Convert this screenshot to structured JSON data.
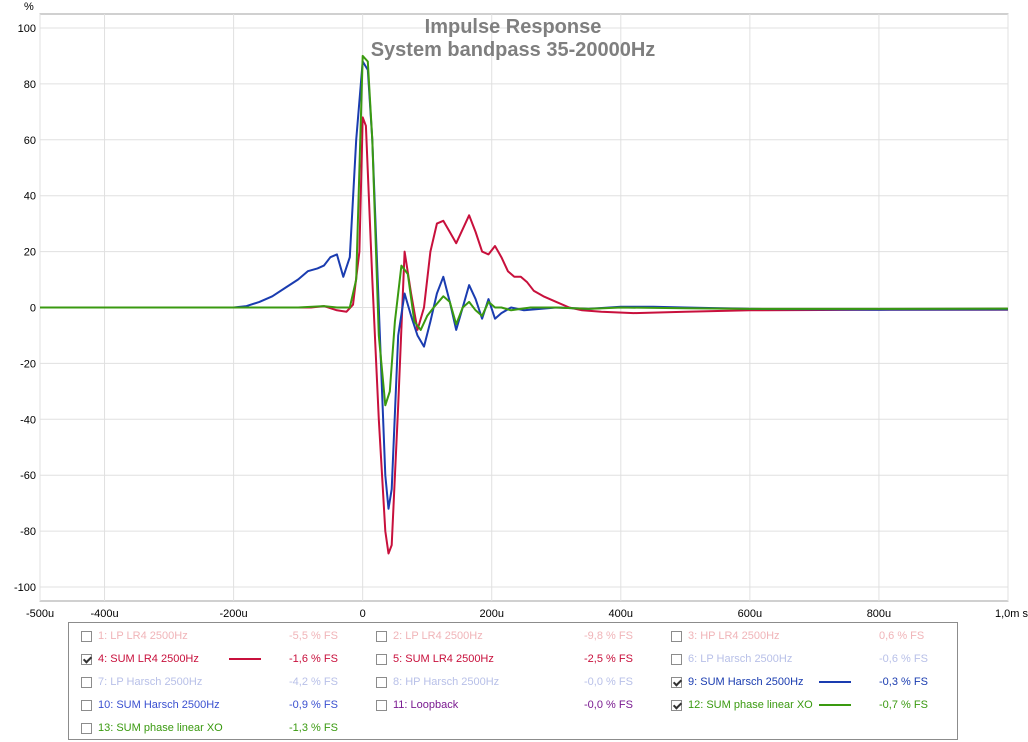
{
  "chart_data": {
    "type": "line",
    "title": "Impulse Response",
    "subtitle": "System bandpass 35-20000Hz",
    "ylabel_unit": "%",
    "xlim": [
      -500,
      1000
    ],
    "ylim": [
      -105,
      105
    ],
    "x_ticks": [
      {
        "value": -500,
        "label": "-500u"
      },
      {
        "value": -400,
        "label": "-400u"
      },
      {
        "value": -200,
        "label": "-200u"
      },
      {
        "value": 0,
        "label": "0"
      },
      {
        "value": 200,
        "label": "200u"
      },
      {
        "value": 400,
        "label": "400u"
      },
      {
        "value": 600,
        "label": "600u"
      },
      {
        "value": 800,
        "label": "800u"
      },
      {
        "value": 1000,
        "label": "1,0m s"
      }
    ],
    "y_ticks": [
      {
        "value": 100,
        "label": "100"
      },
      {
        "value": 80,
        "label": "80"
      },
      {
        "value": 60,
        "label": "60"
      },
      {
        "value": 40,
        "label": "40"
      },
      {
        "value": 20,
        "label": "20"
      },
      {
        "value": 0,
        "label": "0"
      },
      {
        "value": -20,
        "label": "-20"
      },
      {
        "value": -40,
        "label": "-40"
      },
      {
        "value": -60,
        "label": "-60"
      },
      {
        "value": -80,
        "label": "-80"
      },
      {
        "value": -100,
        "label": "-100"
      }
    ],
    "grid": true,
    "series": [
      {
        "name": "4: SUM LR4 2500Hz",
        "color": "#c8103c",
        "points": [
          [
            -500,
            0
          ],
          [
            -150,
            0
          ],
          [
            -80,
            0
          ],
          [
            -60,
            0.5
          ],
          [
            -40,
            -1
          ],
          [
            -25,
            -1.5
          ],
          [
            -15,
            1
          ],
          [
            -5,
            20
          ],
          [
            0,
            68
          ],
          [
            5,
            65
          ],
          [
            15,
            10
          ],
          [
            25,
            -40
          ],
          [
            35,
            -80
          ],
          [
            40,
            -88
          ],
          [
            45,
            -85
          ],
          [
            55,
            -35
          ],
          [
            65,
            20
          ],
          [
            75,
            5
          ],
          [
            85,
            -8
          ],
          [
            95,
            0
          ],
          [
            105,
            20
          ],
          [
            115,
            30
          ],
          [
            125,
            31
          ],
          [
            135,
            27
          ],
          [
            145,
            23
          ],
          [
            155,
            28
          ],
          [
            165,
            33
          ],
          [
            175,
            27
          ],
          [
            185,
            20
          ],
          [
            195,
            19
          ],
          [
            205,
            22
          ],
          [
            215,
            18
          ],
          [
            225,
            13
          ],
          [
            235,
            11
          ],
          [
            245,
            11
          ],
          [
            255,
            9
          ],
          [
            265,
            6
          ],
          [
            280,
            4
          ],
          [
            300,
            2
          ],
          [
            320,
            0
          ],
          [
            340,
            -1
          ],
          [
            370,
            -1.5
          ],
          [
            420,
            -2
          ],
          [
            500,
            -1.5
          ],
          [
            600,
            -1
          ],
          [
            800,
            -0.8
          ],
          [
            1000,
            -0.8
          ]
        ]
      },
      {
        "name": "9: SUM Harsch 2500Hz",
        "color": "#1a3cb0",
        "points": [
          [
            -500,
            0
          ],
          [
            -200,
            0
          ],
          [
            -180,
            0.5
          ],
          [
            -160,
            2
          ],
          [
            -140,
            4
          ],
          [
            -120,
            7
          ],
          [
            -100,
            10
          ],
          [
            -85,
            13
          ],
          [
            -70,
            14
          ],
          [
            -60,
            15
          ],
          [
            -50,
            18
          ],
          [
            -40,
            19
          ],
          [
            -30,
            11
          ],
          [
            -20,
            18
          ],
          [
            -10,
            60
          ],
          [
            0,
            88
          ],
          [
            8,
            85
          ],
          [
            15,
            60
          ],
          [
            25,
            0
          ],
          [
            35,
            -60
          ],
          [
            40,
            -72
          ],
          [
            45,
            -65
          ],
          [
            55,
            -10
          ],
          [
            65,
            5
          ],
          [
            75,
            -3
          ],
          [
            85,
            -10
          ],
          [
            95,
            -14
          ],
          [
            105,
            -5
          ],
          [
            115,
            5
          ],
          [
            125,
            11
          ],
          [
            135,
            2
          ],
          [
            145,
            -8
          ],
          [
            155,
            0
          ],
          [
            165,
            8
          ],
          [
            175,
            3
          ],
          [
            185,
            -4
          ],
          [
            195,
            3
          ],
          [
            205,
            -4
          ],
          [
            215,
            -2
          ],
          [
            230,
            0
          ],
          [
            250,
            -1
          ],
          [
            300,
            0
          ],
          [
            350,
            -0.5
          ],
          [
            400,
            0.3
          ],
          [
            450,
            0.3
          ],
          [
            500,
            0
          ],
          [
            600,
            -0.5
          ],
          [
            800,
            -0.8
          ],
          [
            1000,
            -0.7
          ]
        ]
      },
      {
        "name": "12: SUM phase linear XO",
        "color": "#3a9a10",
        "points": [
          [
            -500,
            0
          ],
          [
            -100,
            0
          ],
          [
            -60,
            0.5
          ],
          [
            -40,
            0
          ],
          [
            -20,
            0
          ],
          [
            -10,
            10
          ],
          [
            0,
            90
          ],
          [
            8,
            88
          ],
          [
            15,
            60
          ],
          [
            25,
            -10
          ],
          [
            35,
            -35
          ],
          [
            42,
            -30
          ],
          [
            50,
            -5
          ],
          [
            60,
            15
          ],
          [
            70,
            12
          ],
          [
            80,
            -5
          ],
          [
            90,
            -8
          ],
          [
            100,
            -3
          ],
          [
            110,
            0
          ],
          [
            125,
            4
          ],
          [
            135,
            2
          ],
          [
            145,
            -6
          ],
          [
            155,
            0
          ],
          [
            165,
            2
          ],
          [
            175,
            -1
          ],
          [
            185,
            -3
          ],
          [
            195,
            2
          ],
          [
            205,
            0
          ],
          [
            215,
            0
          ],
          [
            230,
            -1
          ],
          [
            260,
            0
          ],
          [
            300,
            0
          ],
          [
            350,
            -0.5
          ],
          [
            400,
            0
          ],
          [
            500,
            -0.3
          ],
          [
            600,
            -0.5
          ],
          [
            800,
            -0.5
          ],
          [
            1000,
            -0.4
          ]
        ]
      }
    ]
  },
  "legend": {
    "items": [
      {
        "label": "1: LP LR4 2500Hz",
        "value": "-5,5 % FS",
        "checked": false,
        "color": "#f0b4b8",
        "line_color": ""
      },
      {
        "label": "2: LP LR4 2500Hz",
        "value": "-9,8 % FS",
        "checked": false,
        "color": "#f0b4b8",
        "line_color": ""
      },
      {
        "label": "3: HP LR4 2500Hz",
        "value": "0,6 % FS",
        "checked": false,
        "color": "#f0b4b8",
        "line_color": ""
      },
      {
        "label": "4: SUM LR4 2500Hz",
        "value": "-1,6 % FS",
        "checked": true,
        "color": "#c8103c",
        "line_color": "#c8103c"
      },
      {
        "label": "5: SUM LR4 2500Hz",
        "value": "-2,5 % FS",
        "checked": false,
        "color": "#c8103c",
        "line_color": ""
      },
      {
        "label": "6: LP Harsch 2500Hz",
        "value": "-0,6 % FS",
        "checked": false,
        "color": "#b8c0e8",
        "line_color": ""
      },
      {
        "label": "7: LP Harsch 2500Hz",
        "value": "-4,2 % FS",
        "checked": false,
        "color": "#b8c0e8",
        "line_color": ""
      },
      {
        "label": "8: HP Harsch 2500Hz",
        "value": "-0,0 % FS",
        "checked": false,
        "color": "#b8c0e8",
        "line_color": ""
      },
      {
        "label": "9: SUM Harsch 2500Hz",
        "value": "-0,3 % FS",
        "checked": true,
        "color": "#1a3cb0",
        "line_color": "#1a3cb0"
      },
      {
        "label": "10: SUM Harsch 2500Hz",
        "value": "-0,9 % FS",
        "checked": false,
        "color": "#3a50d0",
        "line_color": ""
      },
      {
        "label": "11: Loopback",
        "value": "-0,0 % FS",
        "checked": false,
        "color": "#7a1a90",
        "line_color": ""
      },
      {
        "label": "12: SUM phase linear XO",
        "value": "-0,7 % FS",
        "checked": true,
        "color": "#3a9a10",
        "line_color": "#3a9a10"
      },
      {
        "label": "13: SUM phase linear XO",
        "value": "-1,3 % FS",
        "checked": false,
        "color": "#3a9a10",
        "line_color": ""
      }
    ]
  }
}
